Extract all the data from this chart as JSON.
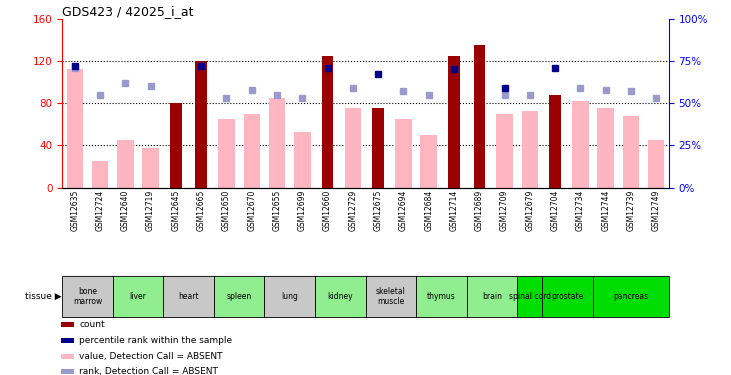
{
  "title": "GDS423 / 42025_i_at",
  "samples": [
    "GSM12635",
    "GSM12724",
    "GSM12640",
    "GSM12719",
    "GSM12645",
    "GSM12665",
    "GSM12650",
    "GSM12670",
    "GSM12655",
    "GSM12699",
    "GSM12660",
    "GSM12729",
    "GSM12675",
    "GSM12694",
    "GSM12684",
    "GSM12714",
    "GSM12689",
    "GSM12709",
    "GSM12679",
    "GSM12704",
    "GSM12734",
    "GSM12744",
    "GSM12739",
    "GSM12749"
  ],
  "tissues": [
    {
      "name": "bone\nmarrow",
      "start": 0,
      "end": 2,
      "color": "#c8c8c8"
    },
    {
      "name": "liver",
      "start": 2,
      "end": 4,
      "color": "#90ee90"
    },
    {
      "name": "heart",
      "start": 4,
      "end": 6,
      "color": "#c8c8c8"
    },
    {
      "name": "spleen",
      "start": 6,
      "end": 8,
      "color": "#90ee90"
    },
    {
      "name": "lung",
      "start": 8,
      "end": 10,
      "color": "#c8c8c8"
    },
    {
      "name": "kidney",
      "start": 10,
      "end": 12,
      "color": "#90ee90"
    },
    {
      "name": "skeletal\nmuscle",
      "start": 12,
      "end": 14,
      "color": "#c8c8c8"
    },
    {
      "name": "thymus",
      "start": 14,
      "end": 16,
      "color": "#90ee90"
    },
    {
      "name": "brain",
      "start": 16,
      "end": 18,
      "color": "#90ee90"
    },
    {
      "name": "spinal cord",
      "start": 18,
      "end": 19,
      "color": "#00dd00"
    },
    {
      "name": "prostate",
      "start": 19,
      "end": 21,
      "color": "#00dd00"
    },
    {
      "name": "pancreas",
      "start": 21,
      "end": 24,
      "color": "#00dd00"
    }
  ],
  "count_bars": [
    0,
    0,
    0,
    0,
    80,
    120,
    0,
    0,
    0,
    0,
    125,
    0,
    75,
    0,
    0,
    125,
    135,
    0,
    0,
    88,
    0,
    0,
    0,
    0
  ],
  "value_absent": [
    112,
    25,
    45,
    37,
    0,
    0,
    65,
    70,
    85,
    53,
    0,
    75,
    0,
    65,
    50,
    0,
    0,
    70,
    73,
    0,
    82,
    75,
    68,
    45
  ],
  "rank_absent_pct": [
    71,
    55,
    62,
    60,
    0,
    0,
    53,
    58,
    55,
    53,
    0,
    59,
    0,
    57,
    55,
    0,
    0,
    55,
    55,
    0,
    59,
    58,
    57,
    53
  ],
  "percentile_dark_pct": [
    72,
    0,
    0,
    0,
    0,
    72,
    0,
    0,
    0,
    0,
    71,
    0,
    67,
    0,
    0,
    70,
    0,
    59,
    0,
    71,
    0,
    0,
    0,
    0
  ],
  "ylim_left": [
    0,
    160
  ],
  "ylim_right": [
    0,
    100
  ],
  "yticks_left": [
    0,
    40,
    80,
    120,
    160
  ],
  "yticks_right": [
    0,
    25,
    50,
    75,
    100
  ],
  "ytick_labels_right": [
    "0%",
    "25%",
    "50%",
    "75%",
    "100%"
  ],
  "bar_color_dark_red": "#9B0000",
  "bar_color_pink": "#FFB6C1",
  "dot_color_dark_blue": "#00008B",
  "dot_color_light_blue": "#9999CC",
  "legend_items": [
    {
      "color": "#9B0000",
      "label": "count"
    },
    {
      "color": "#00008B",
      "label": "percentile rank within the sample"
    },
    {
      "color": "#FFB6C1",
      "label": "value, Detection Call = ABSENT"
    },
    {
      "color": "#9999CC",
      "label": "rank, Detection Call = ABSENT"
    }
  ]
}
